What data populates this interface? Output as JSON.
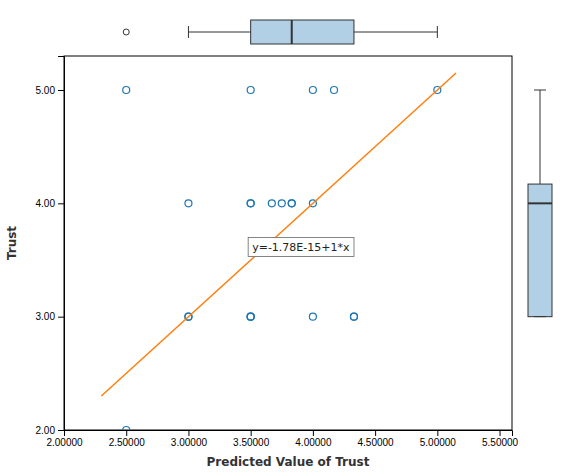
{
  "chart_data": {
    "type": "scatter",
    "xlabel": "Predicted Value of Trust",
    "ylabel": "Trust",
    "annotation": "y=-1.78E-15+1*x",
    "grid": false,
    "series": [
      {
        "type": "scatter",
        "marker": "circle",
        "x": [
          2.5,
          2.5,
          3.0,
          3.0,
          3.0,
          3.5,
          3.5,
          3.5,
          3.5,
          3.5,
          3.5,
          3.67,
          3.75,
          3.83,
          3.83,
          4.0,
          4.0,
          4.0,
          4.17,
          4.33,
          4.33,
          5.0
        ],
        "values": [
          2.0,
          5.0,
          3.0,
          3.0,
          4.0,
          3.0,
          3.0,
          3.0,
          4.0,
          4.0,
          5.0,
          4.0,
          4.0,
          4.0,
          4.0,
          4.0,
          3.0,
          5.0,
          5.0,
          3.0,
          3.0,
          5.0
        ]
      },
      {
        "type": "line",
        "line_style": "solid",
        "x": [
          2.3,
          5.15
        ],
        "values": [
          2.3,
          5.15
        ]
      }
    ],
    "box_x": {
      "low": 3.0,
      "q1": 3.5,
      "median": 3.83,
      "q3": 4.33,
      "high": 5.0,
      "outliers": [
        2.5
      ]
    },
    "box_y": {
      "low": 3.0,
      "q1": 3.0,
      "median": 4.0,
      "q3": 4.17,
      "high": 5.0,
      "outliers": []
    },
    "xlim": [
      2.0,
      5.6
    ],
    "xticks": [
      {
        "value": 2.0,
        "label": "2.00000"
      },
      {
        "value": 2.5,
        "label": "2.50000"
      },
      {
        "value": 3.0,
        "label": "3.00000"
      },
      {
        "value": 3.5,
        "label": "3.50000"
      },
      {
        "value": 4.0,
        "label": "4.00000"
      },
      {
        "value": 4.5,
        "label": "4.50000"
      },
      {
        "value": 5.0,
        "label": "5.00000"
      },
      {
        "value": 5.5,
        "label": "5.50000"
      }
    ],
    "ylim": [
      2.0,
      5.3
    ],
    "yticks": [
      {
        "value": 2.0,
        "label": "2.00"
      },
      {
        "value": 3.0,
        "label": "3.00"
      },
      {
        "value": 4.0,
        "label": "4.00"
      },
      {
        "value": 5.0,
        "label": "5.00"
      }
    ]
  }
}
